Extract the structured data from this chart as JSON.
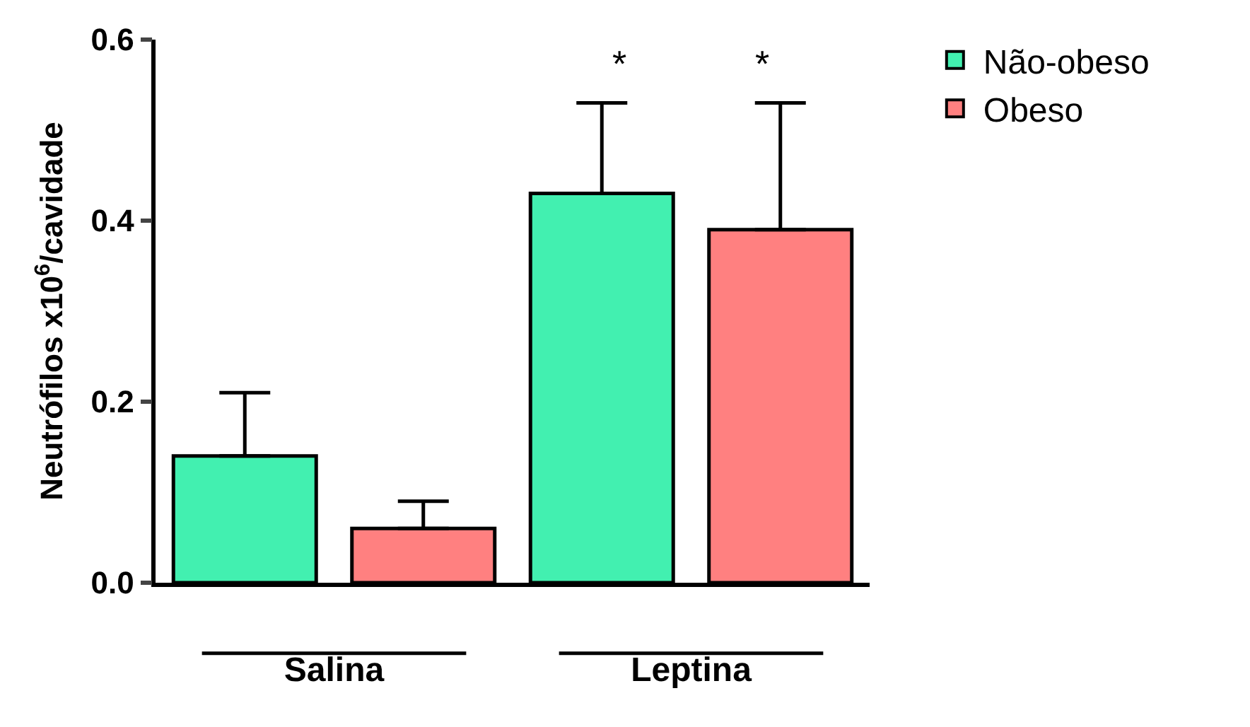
{
  "chart_data": {
    "type": "bar",
    "ylabel": "Neutrófilos x10$^{6}$/cavidade",
    "categories": [
      "Salina",
      "Leptina"
    ],
    "series": [
      {
        "name": "Não-obeso",
        "color": "#42f0b0",
        "values": [
          0.14,
          0.43
        ],
        "errors": [
          [
            0.14,
            0.21
          ],
          [
            0.43,
            0.53
          ]
        ]
      },
      {
        "name": "Obeso",
        "color": "#ff8080",
        "values": [
          0.06,
          0.39
        ],
        "errors": [
          [
            0.06,
            0.09
          ],
          [
            0.39,
            0.53
          ]
        ]
      }
    ],
    "ylim": [
      0,
      0.6
    ],
    "yticks": [
      {
        "value": 0,
        "label": "0.0"
      },
      {
        "value": 0.2,
        "label": "0.2"
      },
      {
        "value": 0.4,
        "label": "0.4"
      },
      {
        "value": 0.6,
        "label": "0.6"
      }
    ],
    "annotations": [
      "*",
      "*"
    ],
    "legend": "top right"
  }
}
